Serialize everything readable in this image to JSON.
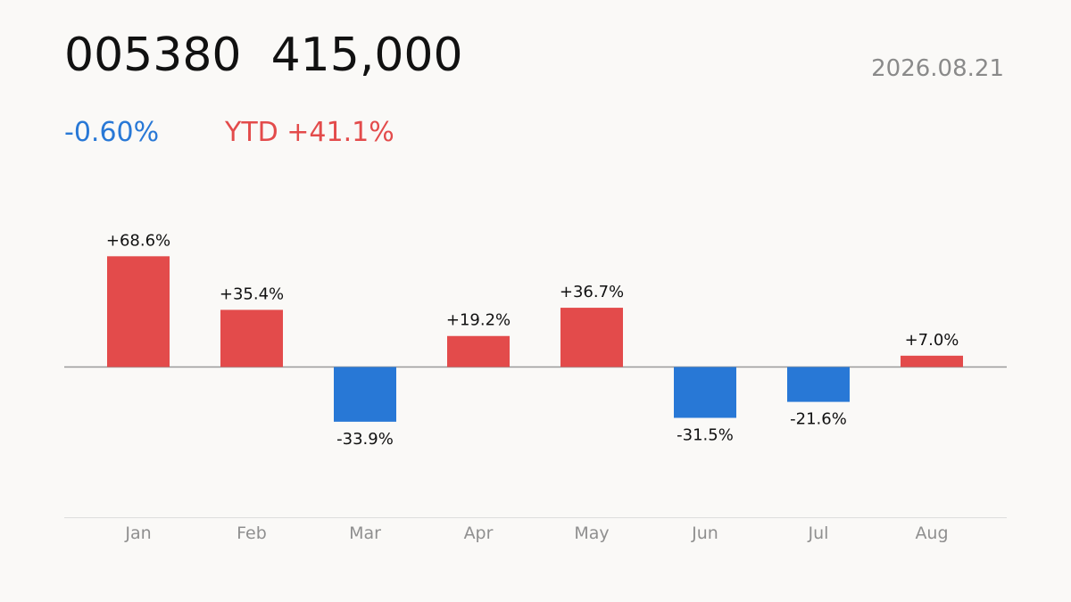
{
  "header": {
    "title": "005380  415,000",
    "date": "2026.08.21",
    "change": "-0.60%",
    "ytd": "YTD +41.1%"
  },
  "colors": {
    "positive": "#e34b4b",
    "negative": "#2878d6",
    "text": "#111111",
    "muted": "#8f8f8f",
    "zero_line": "#9a9a9a",
    "axis_line": "#dddddd"
  },
  "chart_data": {
    "type": "bar",
    "categories": [
      "Jan",
      "Feb",
      "Mar",
      "Apr",
      "May",
      "Jun",
      "Jul",
      "Aug"
    ],
    "values": [
      68.6,
      35.4,
      -33.9,
      19.2,
      36.7,
      -31.5,
      -21.6,
      7.0
    ],
    "labels": [
      "+68.6%",
      "+35.4%",
      "-33.9%",
      "+19.2%",
      "+36.7%",
      "-31.5%",
      "-21.6%",
      "+7.0%"
    ],
    "title": "",
    "xlabel": "",
    "ylabel": "",
    "grid": false,
    "legend": "none"
  }
}
